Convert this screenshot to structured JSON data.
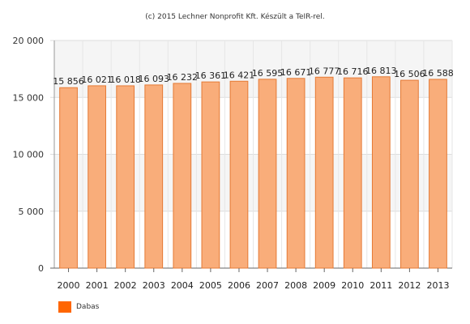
{
  "chart_data": {
    "type": "bar",
    "title": "(c) 2015 Lechner Nonprofit Kft. Készült a TeIR-rel.",
    "xlabel": "",
    "ylabel": "",
    "categories": [
      "2000",
      "2001",
      "2002",
      "2003",
      "2004",
      "2005",
      "2006",
      "2007",
      "2008",
      "2009",
      "2010",
      "2011",
      "2012",
      "2013"
    ],
    "series": [
      {
        "name": "Dabas",
        "values": [
          15856,
          16021,
          16018,
          16093,
          16232,
          16361,
          16421,
          16595,
          16671,
          16777,
          16716,
          16813,
          16506,
          16588
        ],
        "labels": [
          "15 856",
          "16 021",
          "16 018",
          "16 093",
          "16 232",
          "16 361",
          "16 421",
          "16 595",
          "16 671",
          "16 777",
          "16 716",
          "16 813",
          "16 506",
          "16 588"
        ],
        "fill": "#f9ad7a",
        "stroke": "#e57a35",
        "legend_color": "#ff6600"
      }
    ],
    "ylim": [
      0,
      20000
    ],
    "yticks": [
      0,
      5000,
      10000,
      15000,
      20000
    ],
    "ytick_labels": [
      "0",
      "5 000",
      "10 000",
      "15 000",
      "20 000"
    ],
    "grid": true,
    "legend_position": "bottom-left"
  }
}
